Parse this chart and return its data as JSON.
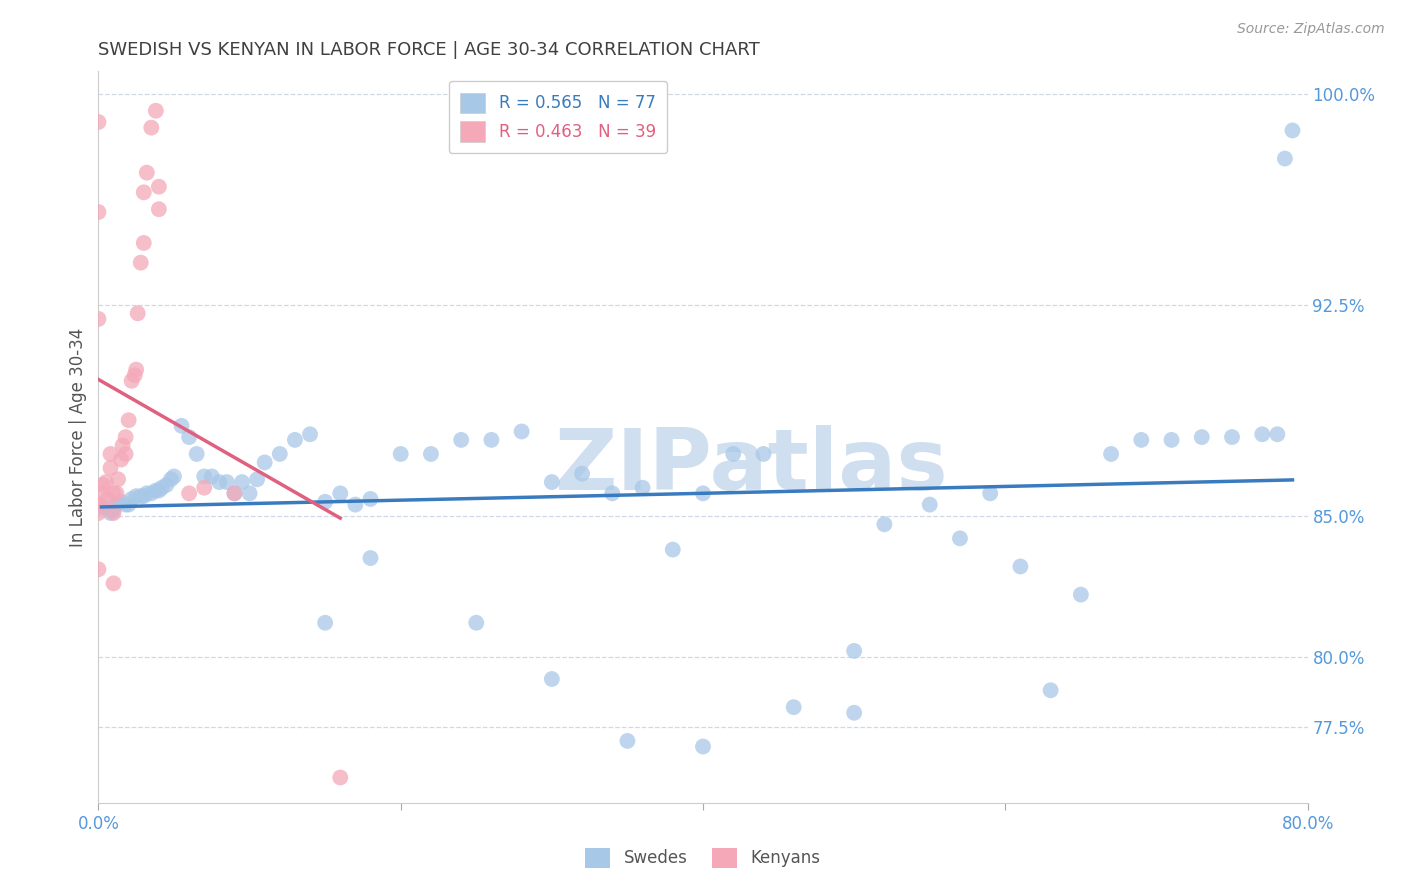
{
  "title": "SWEDISH VS KENYAN IN LABOR FORCE | AGE 30-34 CORRELATION CHART",
  "source": "Source: ZipAtlas.com",
  "ylabel": "In Labor Force | Age 30-34",
  "xlim": [
    0.0,
    0.8
  ],
  "ylim": [
    0.748,
    1.008
  ],
  "yticks": [
    0.775,
    0.8,
    0.85,
    0.925,
    1.0
  ],
  "ytick_labels": [
    "77.5%",
    "80.0%",
    "85.0%",
    "92.5%",
    "100.0%"
  ],
  "xtick_vals": [
    0.0,
    0.2,
    0.4,
    0.6,
    0.8
  ],
  "xtick_labels": [
    "0.0%",
    "",
    "",
    "",
    "80.0%"
  ],
  "blue_R": 0.565,
  "blue_N": 77,
  "pink_R": 0.463,
  "pink_N": 39,
  "blue_color": "#a8c8e8",
  "pink_color": "#f4a8b8",
  "blue_line_color": "#3a7bbf",
  "pink_line_color": "#e06080",
  "background_color": "#ffffff",
  "grid_color": "#d0d8e8",
  "watermark_text": "ZIPatlas",
  "watermark_color": "#d0dff0",
  "title_color": "#404040",
  "axis_label_color": "#555555",
  "tick_label_color": "#5599dd",
  "blue_x": [
    0.002,
    0.005,
    0.008,
    0.01,
    0.012,
    0.015,
    0.018,
    0.02,
    0.022,
    0.025,
    0.028,
    0.03,
    0.032,
    0.035,
    0.038,
    0.04,
    0.042,
    0.045,
    0.048,
    0.05,
    0.055,
    0.06,
    0.065,
    0.07,
    0.075,
    0.08,
    0.085,
    0.09,
    0.095,
    0.1,
    0.105,
    0.11,
    0.12,
    0.13,
    0.14,
    0.15,
    0.16,
    0.17,
    0.18,
    0.2,
    0.22,
    0.24,
    0.26,
    0.28,
    0.3,
    0.32,
    0.34,
    0.36,
    0.38,
    0.4,
    0.42,
    0.44,
    0.46,
    0.5,
    0.52,
    0.55,
    0.57,
    0.59,
    0.61,
    0.63,
    0.65,
    0.67,
    0.69,
    0.71,
    0.73,
    0.75,
    0.77,
    0.78,
    0.785,
    0.79,
    0.15,
    0.18,
    0.25,
    0.3,
    0.35,
    0.4,
    0.5
  ],
  "blue_y": [
    0.853,
    0.853,
    0.851,
    0.852,
    0.854,
    0.855,
    0.854,
    0.854,
    0.856,
    0.857,
    0.857,
    0.857,
    0.858,
    0.858,
    0.859,
    0.859,
    0.86,
    0.861,
    0.863,
    0.864,
    0.882,
    0.878,
    0.872,
    0.864,
    0.864,
    0.862,
    0.862,
    0.858,
    0.862,
    0.858,
    0.863,
    0.869,
    0.872,
    0.877,
    0.879,
    0.855,
    0.858,
    0.854,
    0.856,
    0.872,
    0.872,
    0.877,
    0.877,
    0.88,
    0.862,
    0.865,
    0.858,
    0.86,
    0.838,
    0.858,
    0.872,
    0.872,
    0.782,
    0.802,
    0.847,
    0.854,
    0.842,
    0.858,
    0.832,
    0.788,
    0.822,
    0.872,
    0.877,
    0.877,
    0.878,
    0.878,
    0.879,
    0.879,
    0.977,
    0.987,
    0.812,
    0.835,
    0.812,
    0.792,
    0.77,
    0.768,
    0.78
  ],
  "pink_x": [
    0.0,
    0.0,
    0.0,
    0.0,
    0.002,
    0.003,
    0.005,
    0.006,
    0.008,
    0.008,
    0.01,
    0.01,
    0.012,
    0.013,
    0.015,
    0.016,
    0.018,
    0.018,
    0.02,
    0.022,
    0.024,
    0.025,
    0.026,
    0.028,
    0.03,
    0.03,
    0.032,
    0.035,
    0.038,
    0.04,
    0.04,
    0.06,
    0.07,
    0.09,
    0.16,
    0.0,
    0.0,
    0.0,
    0.01
  ],
  "pink_y": [
    0.854,
    0.854,
    0.851,
    0.831,
    0.858,
    0.861,
    0.862,
    0.856,
    0.867,
    0.872,
    0.851,
    0.858,
    0.858,
    0.863,
    0.87,
    0.875,
    0.872,
    0.878,
    0.884,
    0.898,
    0.9,
    0.902,
    0.922,
    0.94,
    0.947,
    0.965,
    0.972,
    0.988,
    0.994,
    0.959,
    0.967,
    0.858,
    0.86,
    0.858,
    0.757,
    0.92,
    0.958,
    0.99,
    0.826
  ]
}
